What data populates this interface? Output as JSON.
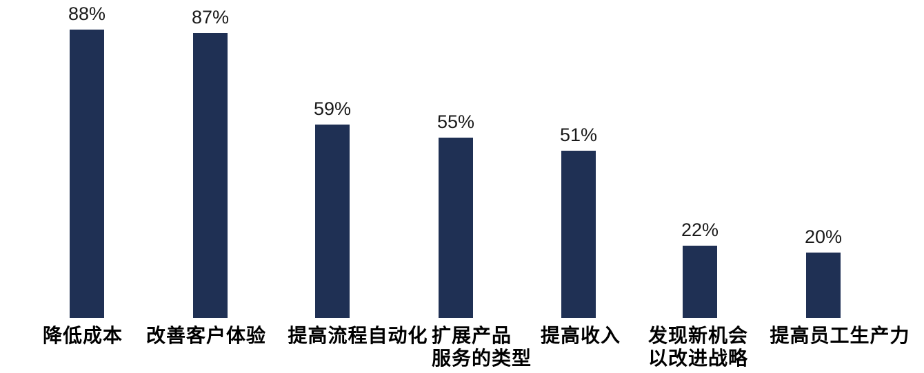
{
  "chart_data": {
    "type": "bar",
    "title": "",
    "categories": [
      "降低成本",
      "改善客户体验",
      "提高流程自动化",
      "扩展产品\n服务的类型",
      "提高收入",
      "发现新机会\n以改进战略",
      "提高员工生产力"
    ],
    "values": [
      88,
      87,
      59,
      55,
      51,
      22,
      20
    ],
    "value_labels": [
      "88%",
      "87%",
      "59%",
      "55%",
      "51%",
      "22%",
      "20%"
    ],
    "xlabel": "",
    "ylabel": "",
    "ylim": [
      0,
      100
    ],
    "grid": false,
    "axes_visible": false,
    "legend": false,
    "bar_color": "#1f3054",
    "value_label_color": "#1a1a1a",
    "category_label_color": "#000000",
    "background_color": "#ffffff"
  }
}
